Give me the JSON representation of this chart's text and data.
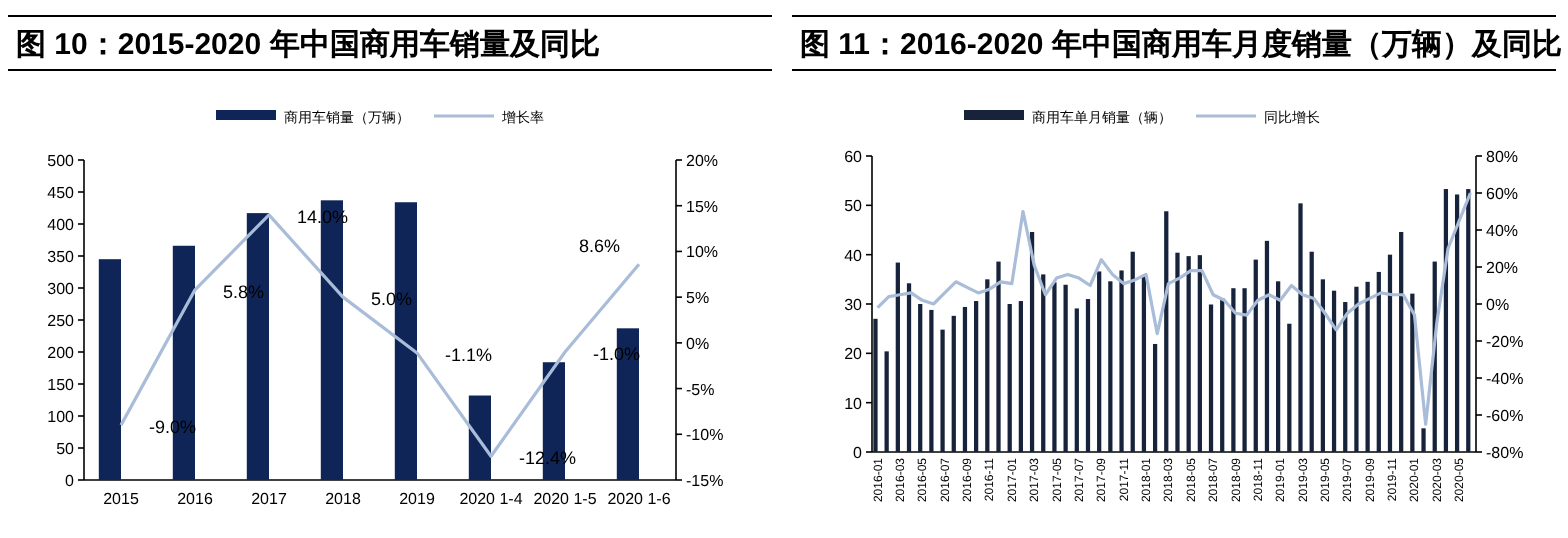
{
  "chart_data": [
    {
      "type": "bar",
      "title": "图 10：2015-2020 年中国商用车销量及同比",
      "legend": "top",
      "categories": [
        "2015",
        "2016",
        "2017",
        "2018",
        "2019",
        "2020 1-4",
        "2020 1-5",
        "2020 1-6"
      ],
      "series": [
        {
          "name": "商用车销量（万辆）",
          "color": "#0f2557",
          "values": [
            345,
            366,
            417,
            437,
            434,
            132,
            184,
            237
          ]
        },
        {
          "name": "增长率",
          "type": "line",
          "axis": "y2",
          "color": "#a9bcd8",
          "values": [
            -9.0,
            5.8,
            14.0,
            5.0,
            -1.1,
            -12.4,
            -1.0,
            8.6
          ],
          "value_labels": [
            "-9.0%",
            "5.8%",
            "14.0%",
            "5.0%",
            "-1.1%",
            "-12.4%",
            "-1.0%",
            "8.6%"
          ]
        }
      ],
      "ylim": [
        0,
        500
      ],
      "yticks": [
        0,
        50,
        100,
        150,
        200,
        250,
        300,
        350,
        400,
        450,
        500
      ],
      "y2lim": [
        -15,
        20
      ],
      "y2ticks": [
        {
          "value": -15,
          "label": "-15%"
        },
        {
          "value": -10,
          "label": "-10%"
        },
        {
          "value": -5,
          "label": "-5%"
        },
        {
          "value": 0,
          "label": "0%"
        },
        {
          "value": 5,
          "label": "5%"
        },
        {
          "value": 10,
          "label": "10%"
        },
        {
          "value": 15,
          "label": "15%"
        },
        {
          "value": 20,
          "label": "20%"
        }
      ]
    },
    {
      "type": "bar",
      "title": "图 11：2016-2020 年中国商用车月度销量（万辆）及同比",
      "legend": "top",
      "categories": [
        "2016-01",
        null,
        "2016-03",
        null,
        "2016-05",
        null,
        "2016-07",
        null,
        "2016-09",
        null,
        "2016-11",
        null,
        "2017-01",
        null,
        "2017-03",
        null,
        "2017-05",
        null,
        "2017-07",
        null,
        "2017-09",
        null,
        "2017-11",
        null,
        "2018-01",
        null,
        "2018-03",
        null,
        "2018-05",
        null,
        "2018-07",
        null,
        "2018-09",
        null,
        "2018-11",
        null,
        "2019-01",
        null,
        "2019-03",
        null,
        "2019-05",
        null,
        "2019-07",
        null,
        "2019-09",
        null,
        "2019-11",
        null,
        "2020-01",
        null,
        "2020-03",
        null,
        "2020-05",
        null
      ],
      "series": [
        {
          "name": "商用车单月销量（辆）",
          "color": "#16233a",
          "values": [
            27.0,
            20.4,
            38.4,
            34.2,
            30.0,
            28.8,
            24.8,
            27.6,
            29.4,
            30.6,
            35.0,
            38.6,
            30.0,
            30.6,
            44.6,
            36.0,
            34.4,
            33.9,
            29.1,
            31.0,
            36.6,
            34.6,
            36.8,
            40.6,
            35.6,
            21.9,
            48.8,
            40.4,
            39.7,
            39.9,
            29.9,
            31.2,
            33.2,
            33.2,
            39.0,
            42.8,
            34.6,
            26.0,
            50.4,
            40.6,
            35.0,
            32.7,
            30.4,
            33.5,
            34.5,
            36.5,
            40.0,
            44.6,
            32.1,
            4.8,
            38.6,
            53.3,
            52.2,
            53.3
          ]
        },
        {
          "name": "同比增长",
          "type": "line",
          "axis": "y2",
          "color": "#a9bcd8",
          "values": [
            -2,
            4,
            5,
            6,
            2,
            0,
            6,
            12,
            9,
            6,
            8,
            12,
            11,
            50,
            21,
            5,
            14,
            16,
            14,
            10,
            24,
            16,
            11,
            13,
            16,
            -16,
            11,
            14,
            18,
            18,
            5,
            2,
            -5,
            -6,
            2,
            5,
            2,
            10,
            5,
            3,
            -5,
            -14,
            -5,
            0,
            3,
            6,
            5,
            5,
            -6,
            -65,
            -10,
            30,
            45,
            60
          ]
        }
      ],
      "ylim": [
        0,
        60
      ],
      "yticks": [
        0,
        10,
        20,
        30,
        40,
        50,
        60
      ],
      "y2lim": [
        -80,
        80
      ],
      "y2ticks": [
        {
          "value": -80,
          "label": "-80%"
        },
        {
          "value": -60,
          "label": "-60%"
        },
        {
          "value": -40,
          "label": "-40%"
        },
        {
          "value": -20,
          "label": "-20%"
        },
        {
          "value": 0,
          "label": "0%"
        },
        {
          "value": 20,
          "label": "20%"
        },
        {
          "value": 40,
          "label": "40%"
        },
        {
          "value": 60,
          "label": "60%"
        },
        {
          "value": 80,
          "label": "80%"
        }
      ]
    }
  ]
}
